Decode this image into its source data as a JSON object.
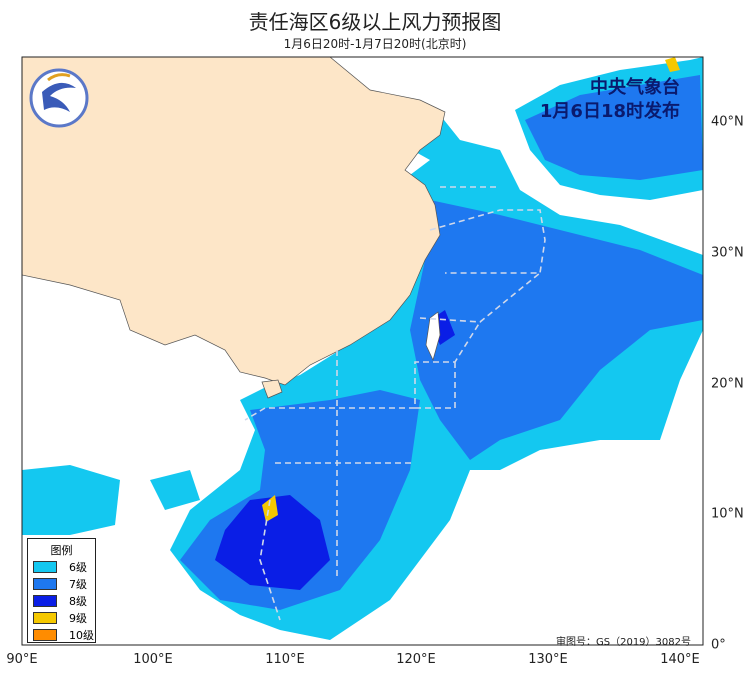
{
  "title": "责任海区6级以上风力预报图",
  "subtitle": "1月6日20时-1月7日20时(北京时)",
  "watermark": {
    "agency": "中央气象台",
    "issued": "1月6日18时发布"
  },
  "axes": {
    "lon_ticks": [
      "90°E",
      "100°E",
      "110°E",
      "120°E",
      "130°E",
      "140°E"
    ],
    "lat_ticks": [
      "0°",
      "10°N",
      "20°N",
      "30°N",
      "40°N"
    ]
  },
  "legend": {
    "title": "图例",
    "items": [
      {
        "label": "6级",
        "color": "#14c8f0"
      },
      {
        "label": "7级",
        "color": "#1e78f0"
      },
      {
        "label": "8级",
        "color": "#0a1ee6"
      },
      {
        "label": "9级",
        "color": "#f5c800"
      },
      {
        "label": "10级",
        "color": "#ff8c00"
      }
    ]
  },
  "review_number": "审图号：GS（2019）3082号",
  "colors": {
    "china_land": "#fde6c8",
    "boundary_dash": "#cfd8e8"
  }
}
